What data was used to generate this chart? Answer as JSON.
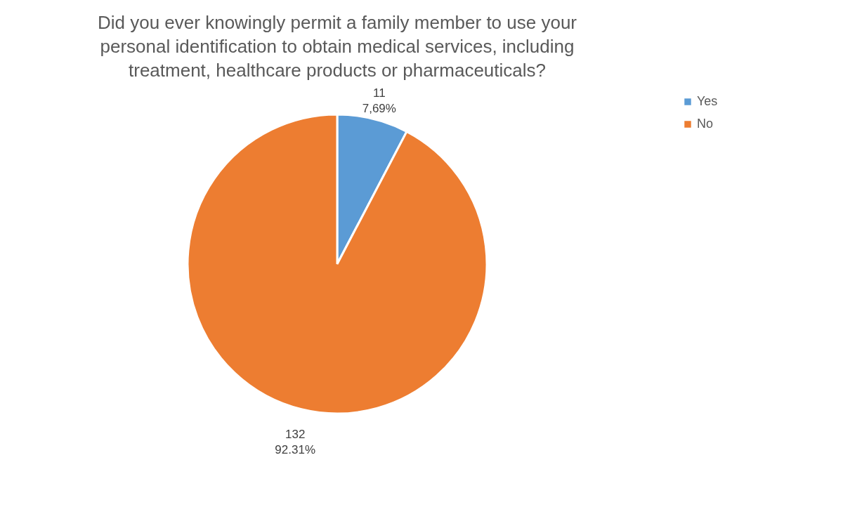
{
  "chart_data": {
    "type": "pie",
    "title": "Did you ever knowingly permit a family member to use your personal identification to obtain medical services, including treatment, healthcare products or pharmaceuticals?",
    "categories": [
      "Yes",
      "No"
    ],
    "values": [
      11,
      132
    ],
    "colors": [
      "#5b9bd5",
      "#ed7d31"
    ],
    "value_labels": [
      "11\n7,69%",
      "132\n92.31%"
    ],
    "legend": "right"
  }
}
